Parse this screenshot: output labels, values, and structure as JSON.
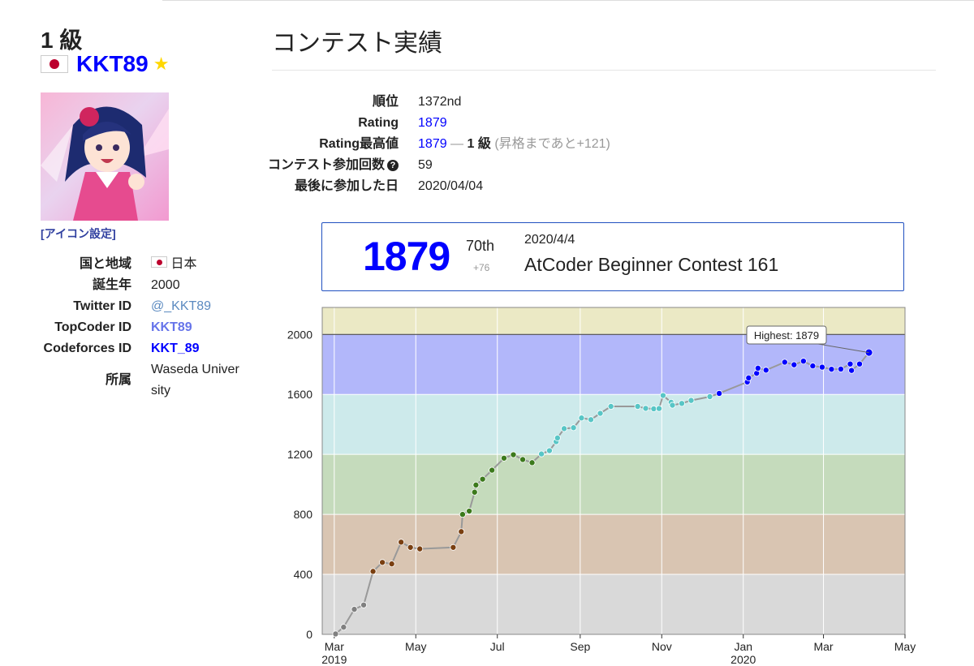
{
  "user": {
    "rank_title": "1 級",
    "username": "KKT89",
    "star": "★",
    "icon_setting": "[アイコン設定]",
    "profile": [
      {
        "key": "国と地域",
        "value": "日本"
      },
      {
        "key": "誕生年",
        "value": "2000"
      },
      {
        "key": "Twitter ID",
        "value": "@_KKT89"
      },
      {
        "key": "TopCoder ID",
        "value": "KKT89"
      },
      {
        "key": "Codeforces ID",
        "value": "KKT_89"
      },
      {
        "key": "所属",
        "value": "Waseda University"
      }
    ]
  },
  "section": {
    "title": "コンテスト実績",
    "stats": {
      "rank_label": "順位",
      "rank_value": "1372nd",
      "rating_label": "Rating",
      "rating_value": "1879",
      "highest_label": "Rating最高値",
      "highest_value": "1879",
      "highest_sep": " — ",
      "highest_grade": "1 級",
      "highest_note": "(昇格まであと+121)",
      "count_label": "コンテスト参加回数",
      "count_value": "59",
      "last_label": "最後に参加した日",
      "last_value": "2020/04/04"
    },
    "contest_box": {
      "rating": "1879",
      "place": "70th",
      "diff": "+76",
      "date": "2020/4/4",
      "name": "AtCoder Beginner Contest 161"
    }
  },
  "chart_data": {
    "type": "line",
    "xlim": [
      "2019-02-20",
      "2020-05-01"
    ],
    "ylim": [
      0,
      2180
    ],
    "yticks": [
      "0",
      "400",
      "800",
      "1200",
      "1600",
      "2000"
    ],
    "xticks": [
      {
        "date": "2019-03-01",
        "label": "Mar",
        "sub": "2019"
      },
      {
        "date": "2019-05-01",
        "label": "May",
        "sub": ""
      },
      {
        "date": "2019-07-01",
        "label": "Jul",
        "sub": ""
      },
      {
        "date": "2019-09-01",
        "label": "Sep",
        "sub": ""
      },
      {
        "date": "2019-11-01",
        "label": "Nov",
        "sub": ""
      },
      {
        "date": "2020-01-01",
        "label": "Jan",
        "sub": "2020"
      },
      {
        "date": "2020-03-01",
        "label": "Mar",
        "sub": ""
      },
      {
        "date": "2020-05-01",
        "label": "May",
        "sub": ""
      }
    ],
    "bands": [
      {
        "from": 0,
        "to": 400,
        "color": "#d9d9d9"
      },
      {
        "from": 400,
        "to": 800,
        "color": "#d9c5b2"
      },
      {
        "from": 800,
        "to": 1200,
        "color": "#c5dbbc"
      },
      {
        "from": 1200,
        "to": 1600,
        "color": "#cdeaeb"
      },
      {
        "from": 1600,
        "to": 2000,
        "color": "#b2b7fa"
      },
      {
        "from": 2000,
        "to": 2180,
        "color": "#ebe9c5"
      }
    ],
    "tooltip": "Highest: 1879",
    "points": [
      {
        "x": "2019-03-02",
        "y": 3
      },
      {
        "x": "2019-03-08",
        "y": 48
      },
      {
        "x": "2019-03-16",
        "y": 167
      },
      {
        "x": "2019-03-23",
        "y": 196
      },
      {
        "x": "2019-03-30",
        "y": 420
      },
      {
        "x": "2019-04-06",
        "y": 480
      },
      {
        "x": "2019-04-13",
        "y": 470
      },
      {
        "x": "2019-04-20",
        "y": 615
      },
      {
        "x": "2019-04-27",
        "y": 580
      },
      {
        "x": "2019-05-04",
        "y": 570
      },
      {
        "x": "2019-05-29",
        "y": 580
      },
      {
        "x": "2019-06-04",
        "y": 685
      },
      {
        "x": "2019-06-05",
        "y": 800
      },
      {
        "x": "2019-06-10",
        "y": 822
      },
      {
        "x": "2019-06-14",
        "y": 948
      },
      {
        "x": "2019-06-15",
        "y": 996
      },
      {
        "x": "2019-06-20",
        "y": 1035
      },
      {
        "x": "2019-06-27",
        "y": 1095
      },
      {
        "x": "2019-07-06",
        "y": 1175
      },
      {
        "x": "2019-07-13",
        "y": 1198
      },
      {
        "x": "2019-07-20",
        "y": 1166
      },
      {
        "x": "2019-07-27",
        "y": 1145
      },
      {
        "x": "2019-08-03",
        "y": 1203
      },
      {
        "x": "2019-08-09",
        "y": 1225
      },
      {
        "x": "2019-08-14",
        "y": 1285
      },
      {
        "x": "2019-08-15",
        "y": 1310
      },
      {
        "x": "2019-08-20",
        "y": 1372
      },
      {
        "x": "2019-08-27",
        "y": 1378
      },
      {
        "x": "2019-09-02",
        "y": 1443
      },
      {
        "x": "2019-09-09",
        "y": 1432
      },
      {
        "x": "2019-09-16",
        "y": 1474
      },
      {
        "x": "2019-09-24",
        "y": 1520
      },
      {
        "x": "2019-10-14",
        "y": 1520
      },
      {
        "x": "2019-10-20",
        "y": 1507
      },
      {
        "x": "2019-10-26",
        "y": 1504
      },
      {
        "x": "2019-10-30",
        "y": 1506
      },
      {
        "x": "2019-11-02",
        "y": 1593
      },
      {
        "x": "2019-11-08",
        "y": 1548
      },
      {
        "x": "2019-11-09",
        "y": 1528
      },
      {
        "x": "2019-11-16",
        "y": 1540
      },
      {
        "x": "2019-11-23",
        "y": 1560
      },
      {
        "x": "2019-12-07",
        "y": 1585
      },
      {
        "x": "2019-12-14",
        "y": 1607
      },
      {
        "x": "2020-01-04",
        "y": 1683
      },
      {
        "x": "2020-01-05",
        "y": 1710
      },
      {
        "x": "2020-01-11",
        "y": 1741
      },
      {
        "x": "2020-01-12",
        "y": 1775
      },
      {
        "x": "2020-01-18",
        "y": 1762
      },
      {
        "x": "2020-02-01",
        "y": 1815
      },
      {
        "x": "2020-02-08",
        "y": 1798
      },
      {
        "x": "2020-02-15",
        "y": 1822
      },
      {
        "x": "2020-02-22",
        "y": 1790
      },
      {
        "x": "2020-02-29",
        "y": 1782
      },
      {
        "x": "2020-03-07",
        "y": 1768
      },
      {
        "x": "2020-03-14",
        "y": 1769
      },
      {
        "x": "2020-03-21",
        "y": 1803
      },
      {
        "x": "2020-03-22",
        "y": 1760
      },
      {
        "x": "2020-03-28",
        "y": 1803
      },
      {
        "x": "2020-04-04",
        "y": 1879
      }
    ]
  }
}
